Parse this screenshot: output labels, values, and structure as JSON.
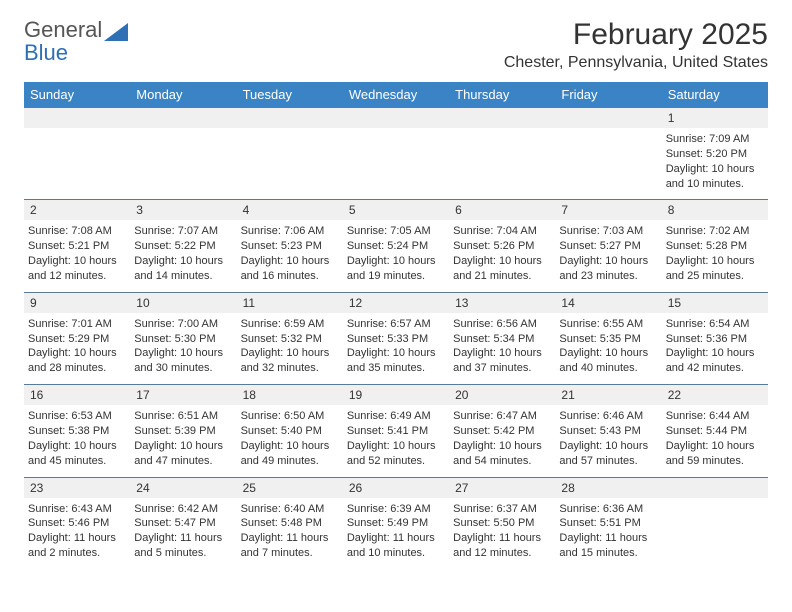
{
  "brand": {
    "line1": "General",
    "line2": "Blue"
  },
  "title": "February 2025",
  "location": "Chester, Pennsylvania, United States",
  "colors": {
    "header_bg": "#3a84c5",
    "header_text": "#ffffff",
    "daynum_bg": "#f0f0f0",
    "divider": "#5a7a9a",
    "text": "#333333",
    "brand_blue": "#2e6fb5"
  },
  "typography": {
    "title_fontsize": 30,
    "location_fontsize": 16,
    "dayhead_fontsize": 13,
    "daynum_fontsize": 12,
    "cell_fontsize": 11
  },
  "day_labels": [
    "Sunday",
    "Monday",
    "Tuesday",
    "Wednesday",
    "Thursday",
    "Friday",
    "Saturday"
  ],
  "weeks": [
    {
      "days": [
        null,
        null,
        null,
        null,
        null,
        null,
        {
          "n": "1",
          "sunrise": "7:09 AM",
          "sunset": "5:20 PM",
          "daylight": "Daylight: 10 hours and 10 minutes."
        }
      ]
    },
    {
      "days": [
        {
          "n": "2",
          "sunrise": "7:08 AM",
          "sunset": "5:21 PM",
          "daylight": "Daylight: 10 hours and 12 minutes."
        },
        {
          "n": "3",
          "sunrise": "7:07 AM",
          "sunset": "5:22 PM",
          "daylight": "Daylight: 10 hours and 14 minutes."
        },
        {
          "n": "4",
          "sunrise": "7:06 AM",
          "sunset": "5:23 PM",
          "daylight": "Daylight: 10 hours and 16 minutes."
        },
        {
          "n": "5",
          "sunrise": "7:05 AM",
          "sunset": "5:24 PM",
          "daylight": "Daylight: 10 hours and 19 minutes."
        },
        {
          "n": "6",
          "sunrise": "7:04 AM",
          "sunset": "5:26 PM",
          "daylight": "Daylight: 10 hours and 21 minutes."
        },
        {
          "n": "7",
          "sunrise": "7:03 AM",
          "sunset": "5:27 PM",
          "daylight": "Daylight: 10 hours and 23 minutes."
        },
        {
          "n": "8",
          "sunrise": "7:02 AM",
          "sunset": "5:28 PM",
          "daylight": "Daylight: 10 hours and 25 minutes."
        }
      ]
    },
    {
      "days": [
        {
          "n": "9",
          "sunrise": "7:01 AM",
          "sunset": "5:29 PM",
          "daylight": "Daylight: 10 hours and 28 minutes."
        },
        {
          "n": "10",
          "sunrise": "7:00 AM",
          "sunset": "5:30 PM",
          "daylight": "Daylight: 10 hours and 30 minutes."
        },
        {
          "n": "11",
          "sunrise": "6:59 AM",
          "sunset": "5:32 PM",
          "daylight": "Daylight: 10 hours and 32 minutes."
        },
        {
          "n": "12",
          "sunrise": "6:57 AM",
          "sunset": "5:33 PM",
          "daylight": "Daylight: 10 hours and 35 minutes."
        },
        {
          "n": "13",
          "sunrise": "6:56 AM",
          "sunset": "5:34 PM",
          "daylight": "Daylight: 10 hours and 37 minutes."
        },
        {
          "n": "14",
          "sunrise": "6:55 AM",
          "sunset": "5:35 PM",
          "daylight": "Daylight: 10 hours and 40 minutes."
        },
        {
          "n": "15",
          "sunrise": "6:54 AM",
          "sunset": "5:36 PM",
          "daylight": "Daylight: 10 hours and 42 minutes."
        }
      ]
    },
    {
      "days": [
        {
          "n": "16",
          "sunrise": "6:53 AM",
          "sunset": "5:38 PM",
          "daylight": "Daylight: 10 hours and 45 minutes."
        },
        {
          "n": "17",
          "sunrise": "6:51 AM",
          "sunset": "5:39 PM",
          "daylight": "Daylight: 10 hours and 47 minutes."
        },
        {
          "n": "18",
          "sunrise": "6:50 AM",
          "sunset": "5:40 PM",
          "daylight": "Daylight: 10 hours and 49 minutes."
        },
        {
          "n": "19",
          "sunrise": "6:49 AM",
          "sunset": "5:41 PM",
          "daylight": "Daylight: 10 hours and 52 minutes."
        },
        {
          "n": "20",
          "sunrise": "6:47 AM",
          "sunset": "5:42 PM",
          "daylight": "Daylight: 10 hours and 54 minutes."
        },
        {
          "n": "21",
          "sunrise": "6:46 AM",
          "sunset": "5:43 PM",
          "daylight": "Daylight: 10 hours and 57 minutes."
        },
        {
          "n": "22",
          "sunrise": "6:44 AM",
          "sunset": "5:44 PM",
          "daylight": "Daylight: 10 hours and 59 minutes."
        }
      ]
    },
    {
      "days": [
        {
          "n": "23",
          "sunrise": "6:43 AM",
          "sunset": "5:46 PM",
          "daylight": "Daylight: 11 hours and 2 minutes."
        },
        {
          "n": "24",
          "sunrise": "6:42 AM",
          "sunset": "5:47 PM",
          "daylight": "Daylight: 11 hours and 5 minutes."
        },
        {
          "n": "25",
          "sunrise": "6:40 AM",
          "sunset": "5:48 PM",
          "daylight": "Daylight: 11 hours and 7 minutes."
        },
        {
          "n": "26",
          "sunrise": "6:39 AM",
          "sunset": "5:49 PM",
          "daylight": "Daylight: 11 hours and 10 minutes."
        },
        {
          "n": "27",
          "sunrise": "6:37 AM",
          "sunset": "5:50 PM",
          "daylight": "Daylight: 11 hours and 12 minutes."
        },
        {
          "n": "28",
          "sunrise": "6:36 AM",
          "sunset": "5:51 PM",
          "daylight": "Daylight: 11 hours and 15 minutes."
        },
        null
      ]
    }
  ],
  "labels": {
    "sunrise_prefix": "Sunrise: ",
    "sunset_prefix": "Sunset: "
  }
}
